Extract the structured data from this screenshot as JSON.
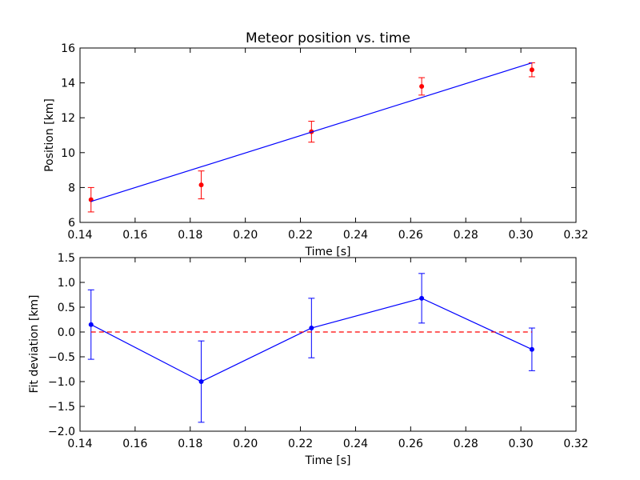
{
  "chart_data": [
    {
      "type": "scatter",
      "title": "Meteor position vs. time",
      "xlabel": "Time [s]",
      "ylabel": "Position [km]",
      "xlim": [
        0.14,
        0.32
      ],
      "ylim": [
        6,
        16
      ],
      "xticks": [
        0.14,
        0.16,
        0.18,
        0.2,
        0.22,
        0.24,
        0.26,
        0.28,
        0.3,
        0.32
      ],
      "xtick_labels": [
        "0.14",
        "0.16",
        "0.18",
        "0.20",
        "0.22",
        "0.24",
        "0.26",
        "0.28",
        "0.30",
        "0.32"
      ],
      "yticks": [
        6,
        8,
        10,
        12,
        14,
        16
      ],
      "ytick_labels": [
        "6",
        "8",
        "10",
        "12",
        "14",
        "16"
      ],
      "grid": false,
      "series": [
        {
          "kind": "errorbar-points",
          "color": "#ff0000",
          "x": [
            0.144,
            0.184,
            0.224,
            0.264,
            0.304
          ],
          "y": [
            7.3,
            8.15,
            11.2,
            13.8,
            14.75
          ],
          "yerr": [
            0.7,
            0.8,
            0.6,
            0.5,
            0.4
          ]
        },
        {
          "kind": "fit-line",
          "color": "#0000ff",
          "x": [
            0.144,
            0.304
          ],
          "y": [
            7.2,
            15.15
          ]
        }
      ]
    },
    {
      "type": "line",
      "xlabel": "Time [s]",
      "ylabel": "Fit deviation [km]",
      "xlim": [
        0.14,
        0.32
      ],
      "ylim": [
        -2.0,
        1.5
      ],
      "xticks": [
        0.14,
        0.16,
        0.18,
        0.2,
        0.22,
        0.24,
        0.26,
        0.28,
        0.3,
        0.32
      ],
      "xtick_labels": [
        "0.14",
        "0.16",
        "0.18",
        "0.20",
        "0.22",
        "0.24",
        "0.26",
        "0.28",
        "0.30",
        "0.32"
      ],
      "yticks": [
        -2.0,
        -1.5,
        -1.0,
        -0.5,
        0.0,
        0.5,
        1.0,
        1.5
      ],
      "ytick_labels": [
        "−2.0",
        "−1.5",
        "−1.0",
        "−0.5",
        "0.0",
        "0.5",
        "1.0",
        "1.5"
      ],
      "grid": false,
      "series": [
        {
          "kind": "errorbar-line",
          "color": "#0000ff",
          "x": [
            0.144,
            0.184,
            0.224,
            0.264,
            0.304
          ],
          "y": [
            0.15,
            -1.0,
            0.08,
            0.68,
            -0.35
          ],
          "yerr": [
            0.7,
            0.82,
            0.6,
            0.5,
            0.43
          ]
        },
        {
          "kind": "reference-line",
          "color": "#ff0000",
          "dashed": true,
          "x": [
            0.144,
            0.304
          ],
          "y": [
            0.0,
            0.0
          ]
        }
      ]
    }
  ]
}
